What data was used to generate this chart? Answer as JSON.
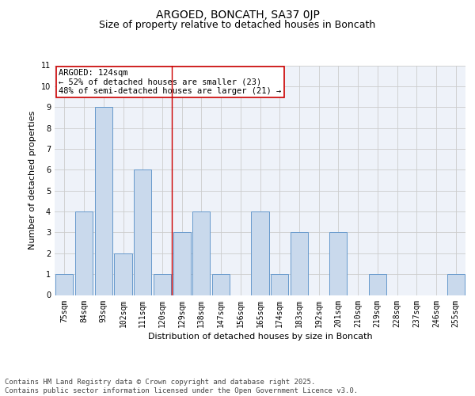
{
  "title": "ARGOED, BONCATH, SA37 0JP",
  "subtitle": "Size of property relative to detached houses in Boncath",
  "xlabel": "Distribution of detached houses by size in Boncath",
  "ylabel": "Number of detached properties",
  "categories": [
    "75sqm",
    "84sqm",
    "93sqm",
    "102sqm",
    "111sqm",
    "120sqm",
    "129sqm",
    "138sqm",
    "147sqm",
    "156sqm",
    "165sqm",
    "174sqm",
    "183sqm",
    "192sqm",
    "201sqm",
    "210sqm",
    "219sqm",
    "228sqm",
    "237sqm",
    "246sqm",
    "255sqm"
  ],
  "values": [
    1,
    4,
    9,
    2,
    6,
    1,
    3,
    4,
    1,
    0,
    4,
    1,
    3,
    0,
    3,
    0,
    1,
    0,
    0,
    0,
    1
  ],
  "bar_color": "#c9d9ec",
  "bar_edge_color": "#6699cc",
  "vline_x": 5.5,
  "vline_color": "#cc0000",
  "annotation_text": "ARGOED: 124sqm\n← 52% of detached houses are smaller (23)\n48% of semi-detached houses are larger (21) →",
  "annotation_box_color": "#ffffff",
  "annotation_box_edge": "#cc0000",
  "ylim": [
    0,
    11
  ],
  "yticks": [
    0,
    1,
    2,
    3,
    4,
    5,
    6,
    7,
    8,
    9,
    10,
    11
  ],
  "grid_color": "#cccccc",
  "bg_color": "#eef2f9",
  "footer": "Contains HM Land Registry data © Crown copyright and database right 2025.\nContains public sector information licensed under the Open Government Licence v3.0.",
  "title_fontsize": 10,
  "subtitle_fontsize": 9,
  "axis_label_fontsize": 8,
  "tick_fontsize": 7,
  "annotation_fontsize": 7.5,
  "footer_fontsize": 6.5
}
